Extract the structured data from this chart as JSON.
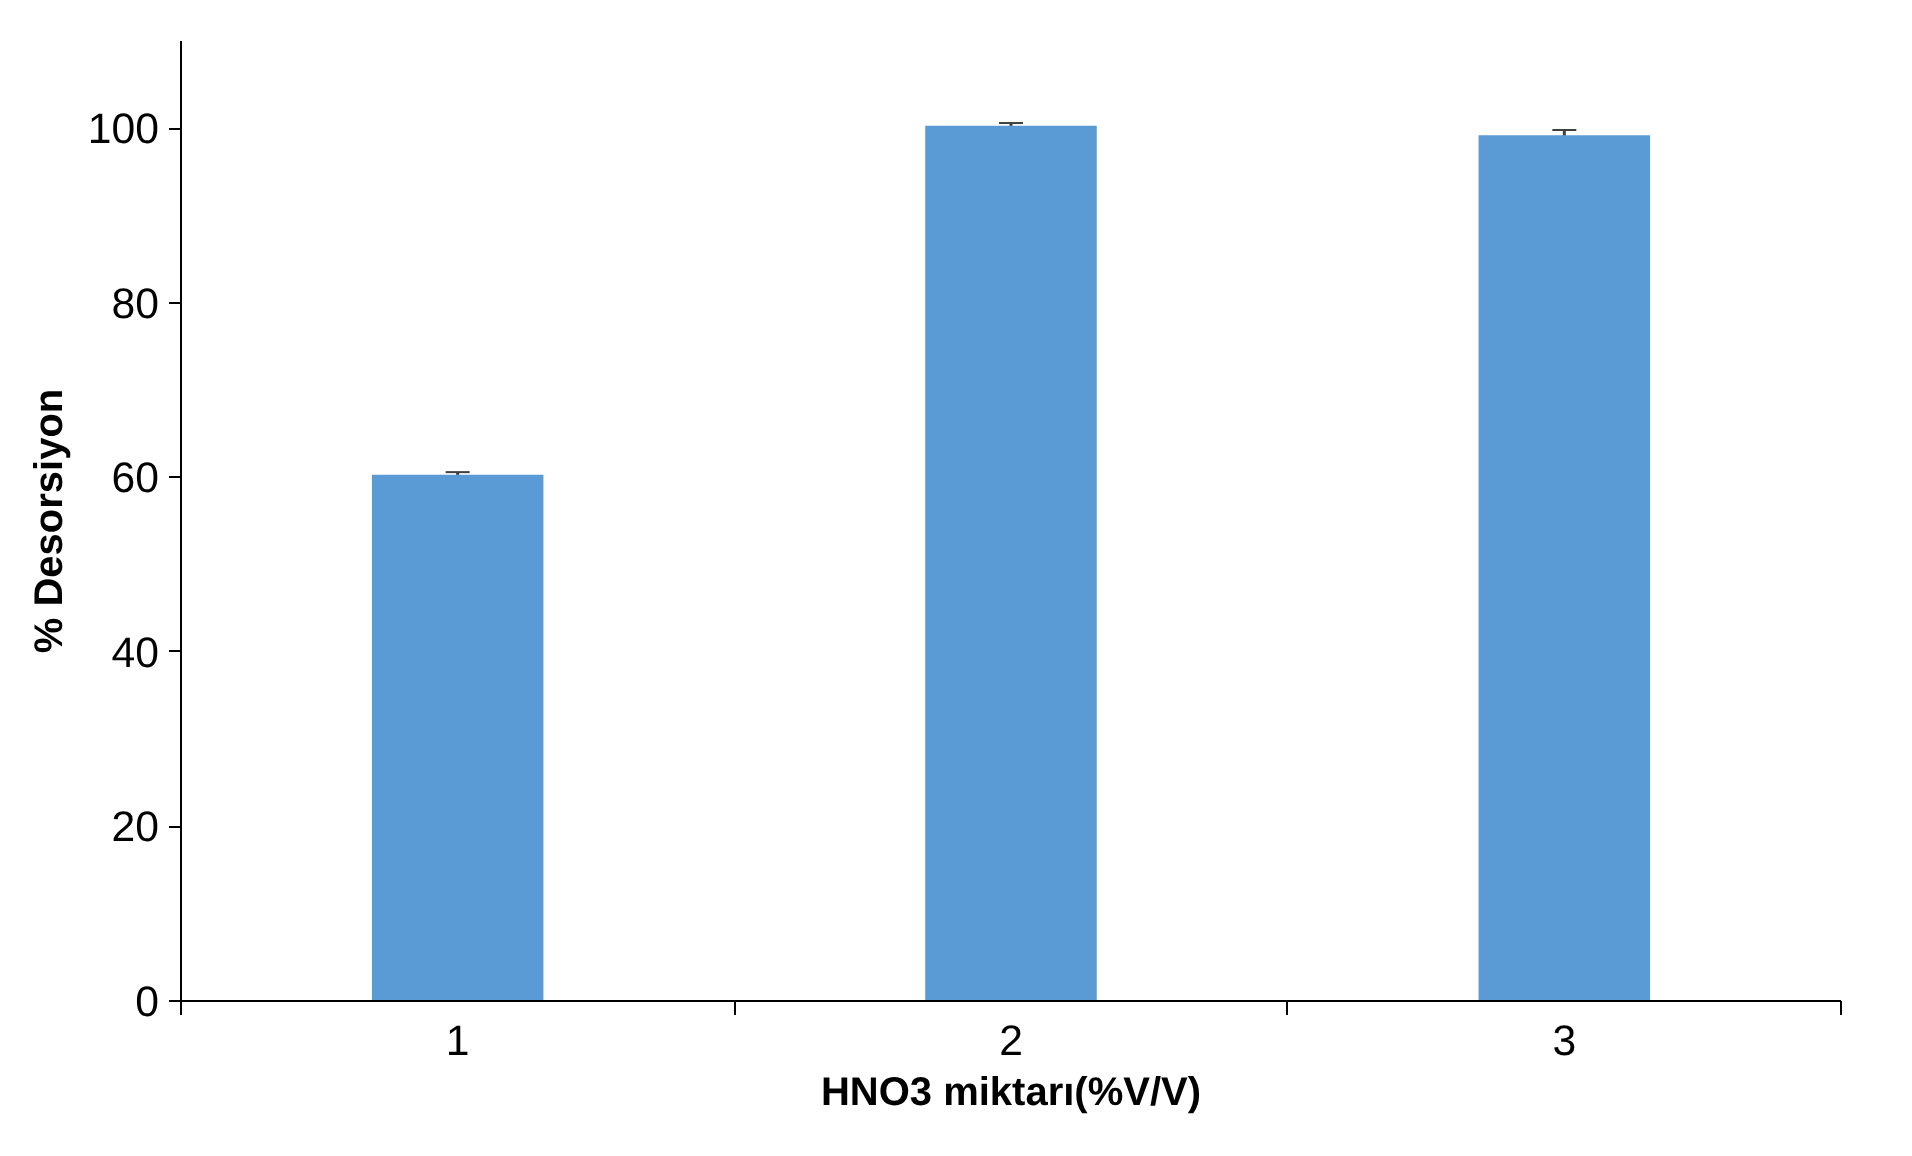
{
  "chart_data": {
    "type": "bar",
    "xlabel": "HNO3 miktarı(%V/V)",
    "ylabel": "% Desorsiyon",
    "categories": [
      "1",
      "2",
      "3"
    ],
    "values": [
      60.3,
      100.3,
      99.2
    ],
    "errors": [
      0.3,
      0.3,
      0.6
    ],
    "color": "#5b9bd5",
    "ylim": [
      0,
      110
    ],
    "yticks": [
      0,
      20,
      40,
      60,
      80,
      100
    ],
    "grid": false
  }
}
